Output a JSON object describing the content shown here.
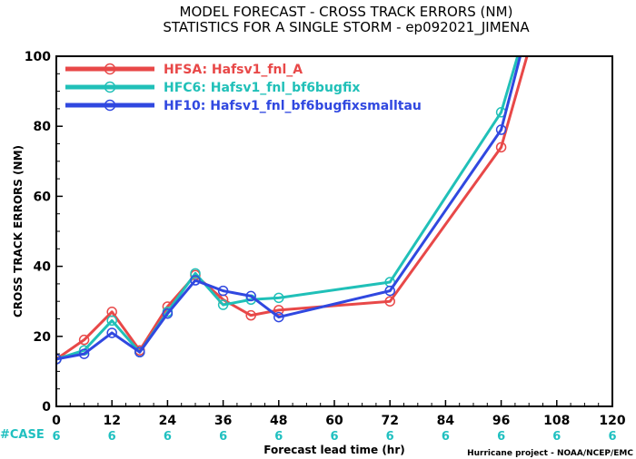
{
  "chart_data": {
    "type": "line",
    "title": "MODEL FORECAST - CROSS TRACK ERRORS (NM)",
    "subtitle": "STATISTICS FOR A SINGLE STORM - ep092021_JIMENA",
    "xlabel": "Forecast lead time (hr)",
    "ylabel": "CROSS TRACK ERRORS (NM)",
    "xlim": [
      0,
      120
    ],
    "ylim": [
      0,
      100
    ],
    "xticks": [
      "0",
      "12",
      "24",
      "36",
      "48",
      "60",
      "72",
      "84",
      "96",
      "108",
      "120"
    ],
    "yticks": [
      "0",
      "20",
      "40",
      "60",
      "80",
      "100"
    ],
    "grid": false,
    "legend": "top-left",
    "case_label": "#CASE",
    "case_counts": [
      "6",
      "6",
      "6",
      "6",
      "6",
      "6",
      "6",
      "6",
      "6",
      "6",
      "6"
    ],
    "credit": "Hurricane project - NOAA/NCEP/EMC",
    "series": [
      {
        "name": "HFSA: Hafsv1_fnl_A",
        "color": "#e84848",
        "points": [
          [
            0,
            13.5
          ],
          [
            6,
            19
          ],
          [
            12,
            27
          ],
          [
            18,
            16
          ],
          [
            24,
            28.5
          ],
          [
            30,
            37.5
          ],
          [
            36,
            30.5
          ],
          [
            42,
            26
          ],
          [
            48,
            27.5
          ],
          [
            72,
            30
          ],
          [
            96,
            74
          ],
          [
            102,
            102
          ]
        ]
      },
      {
        "name": "HFC6: Hafsv1_fnl_bf6bugfix",
        "color": "#20c0b8",
        "points": [
          [
            0,
            13.5
          ],
          [
            6,
            16
          ],
          [
            12,
            24.5
          ],
          [
            18,
            15.5
          ],
          [
            24,
            27
          ],
          [
            30,
            38
          ],
          [
            36,
            29
          ],
          [
            42,
            30.5
          ],
          [
            48,
            31
          ],
          [
            72,
            35.5
          ],
          [
            96,
            84
          ],
          [
            100,
            102
          ]
        ]
      },
      {
        "name": "HF10: Hafsv1_fnl_bf6bugfixsmalltau",
        "color": "#3048e0",
        "points": [
          [
            0,
            13.5
          ],
          [
            6,
            15
          ],
          [
            12,
            21
          ],
          [
            18,
            15.5
          ],
          [
            24,
            26.5
          ],
          [
            30,
            36
          ],
          [
            36,
            33
          ],
          [
            42,
            31.5
          ],
          [
            48,
            25.5
          ],
          [
            72,
            33
          ],
          [
            96,
            79
          ],
          [
            100.5,
            102
          ]
        ]
      }
    ]
  }
}
